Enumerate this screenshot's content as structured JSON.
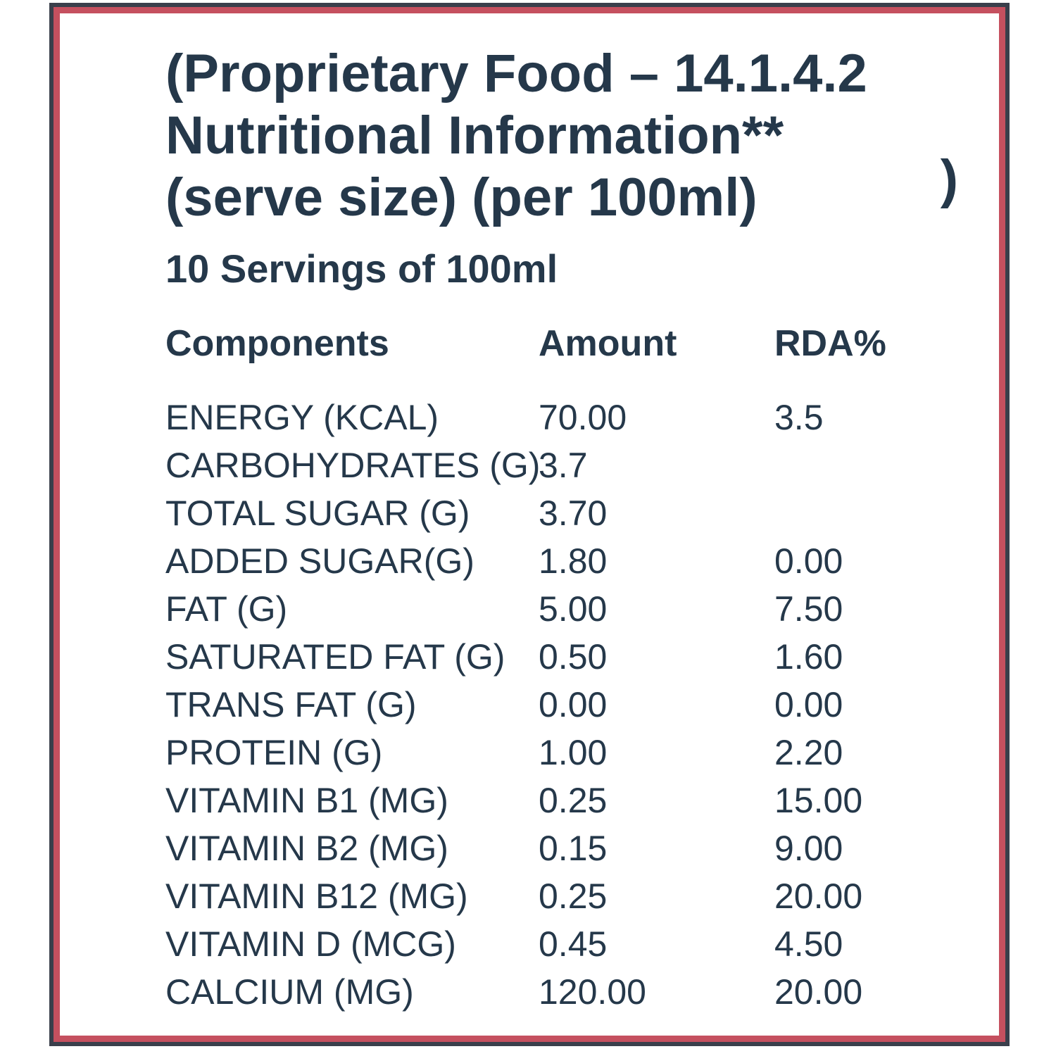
{
  "label": {
    "title_line1": "(Proprietary Food – 14.1.4.2",
    "title_line2": "Nutritional Information**",
    "title_trailing_paren": ")",
    "title_line3": "(serve size) (per 100ml)",
    "servings": "10 Servings of 100ml"
  },
  "table": {
    "headers": [
      "Components",
      "Amount",
      "RDA%"
    ],
    "rows": [
      {
        "component": "ENERGY (KCAL)",
        "amount": "70.00",
        "rda": "3.5"
      },
      {
        "component": "CARBOHYDRATES (G)",
        "amount": "3.7",
        "rda": ""
      },
      {
        "component": "TOTAL SUGAR (G)",
        "amount": "3.70",
        "rda": ""
      },
      {
        "component": "ADDED SUGAR(G)",
        "amount": "1.80",
        "rda": "0.00"
      },
      {
        "component": "FAT (G)",
        "amount": "5.00",
        "rda": "7.50"
      },
      {
        "component": "SATURATED FAT (G)",
        "amount": "0.50",
        "rda": "1.60"
      },
      {
        "component": "TRANS FAT (G)",
        "amount": "0.00",
        "rda": "0.00"
      },
      {
        "component": "PROTEIN (G)",
        "amount": "1.00",
        "rda": "2.20"
      },
      {
        "component": "VITAMIN B1 (MG)",
        "amount": "0.25",
        "rda": "15.00"
      },
      {
        "component": "VITAMIN B2 (MG)",
        "amount": "0.15",
        "rda": "9.00"
      },
      {
        "component": "VITAMIN B12 (MG)",
        "amount": "0.25",
        "rda": "20.00"
      },
      {
        "component": "VITAMIN D (MCG)",
        "amount": "0.45",
        "rda": "4.50"
      },
      {
        "component": "CALCIUM (MG)",
        "amount": "120.00",
        "rda": "20.00"
      }
    ]
  },
  "colors": {
    "text": "#25384a",
    "border_outer": "#3a3f4b",
    "border_inner": "#c5505f",
    "background": "#ffffff"
  }
}
